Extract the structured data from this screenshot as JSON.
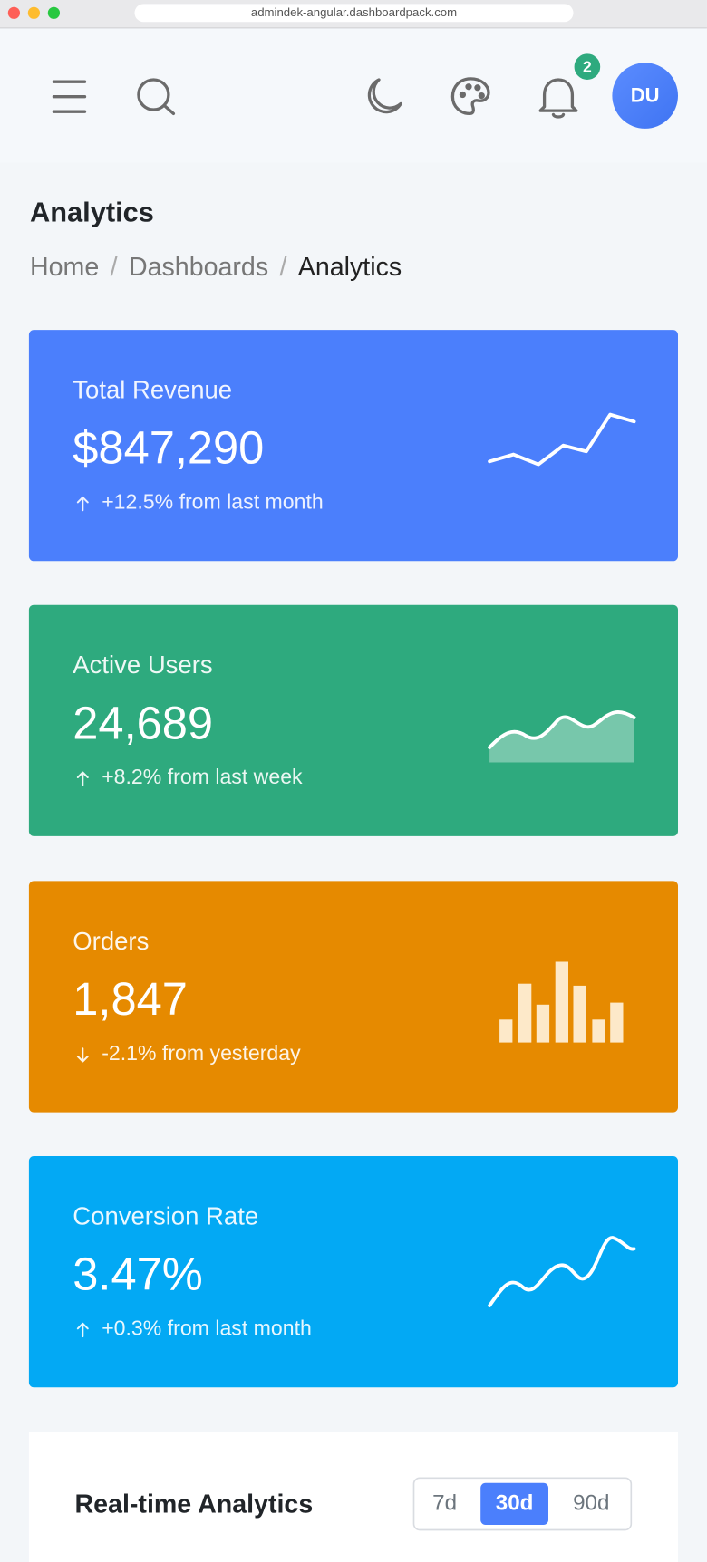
{
  "browser": {
    "url": "admindek-angular.dashboardpack.com"
  },
  "header": {
    "notification_count": 2,
    "avatar": "DU"
  },
  "page": {
    "title": "Analytics",
    "breadcrumbs": [
      "Home",
      "Dashboards",
      "Analytics"
    ],
    "breadcrumb_separator": "/"
  },
  "cards": [
    {
      "title": "Total Revenue",
      "value": "$847,290",
      "change": "+12.5% from last month"
    },
    {
      "title": "Active Users",
      "value": "24,689",
      "change": "+8.2% from last week"
    },
    {
      "title": "Orders",
      "value": "1,847",
      "change": "-2.1% from yesterday"
    },
    {
      "title": "Conversion Rate",
      "value": "3.47%",
      "change": "+0.3% from last month"
    }
  ],
  "realtime": {
    "title": "Real-time Analytics",
    "ranges": [
      "7d",
      "30d",
      "90d"
    ],
    "active_range": 1
  }
}
